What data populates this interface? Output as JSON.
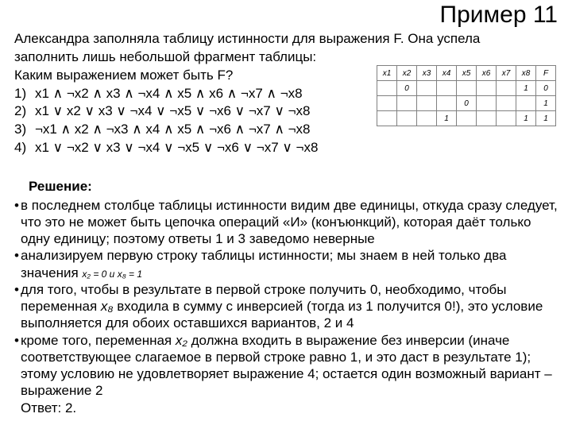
{
  "title": "Пример 11",
  "intro_line1": "Александра заполняла таблицу истинности для выражения F. Она успела",
  "intro_line2": "заполнить лишь небольшой фрагмент таблицы:",
  "question": "Каким выражением может быть F?",
  "options": [
    {
      "num": "1)",
      "expr": "x1 ∧ ¬x2 ∧ x3 ∧  ¬x4 ∧ x5 ∧ x6 ∧ ¬x7 ∧ ¬x8"
    },
    {
      "num": "2)",
      "expr": "x1 ∨ x2 ∨ x3 ∨  ¬x4 ∨ ¬x5 ∨ ¬x6 ∨ ¬x7 ∨ ¬x8"
    },
    {
      "num": "3)",
      "expr": "¬x1 ∧ x2 ∧ ¬x3 ∧  x4 ∧ x5 ∧ ¬x6 ∧ ¬x7 ∧ ¬x8"
    },
    {
      "num": "4)",
      "expr": "x1 ∨ ¬x2 ∨ x3 ∨  ¬x4 ∨ ¬x5 ∨ ¬x6 ∨ ¬x7 ∨ ¬x8"
    }
  ],
  "table": {
    "headers": [
      "x1",
      "x2",
      "x3",
      "x4",
      "x5",
      "x6",
      "x7",
      "x8",
      "F"
    ],
    "rows": [
      [
        "",
        "0",
        "",
        "",
        "",
        "",
        "",
        "1",
        "0"
      ],
      [
        "",
        "",
        "",
        "",
        "0",
        "",
        "",
        "",
        "1"
      ],
      [
        "",
        "",
        "",
        "1",
        "",
        "",
        "",
        "1",
        "1"
      ]
    ]
  },
  "solution_title": "Решение:",
  "bullets": [
    "в последнем столбце таблицы истинности видим две единицы, откуда сразу следует, что это не может быть цепочка операций «И» (конъюнкций), которая даёт только одну единицу; поэтому ответы 1 и 3 заведомо неверные",
    "анализируем первую строку таблицы истинности; мы знаем в ней только два значения",
    "для того, чтобы в результате в первой строке получить 0, необходимо, чтобы переменная x₈ входила в сумму с инверсией (тогда из 1 получится 0!), это условие выполняется для обоих оставшихся вариантов, 2 и 4",
    "кроме того, переменная x₂ должна входить в выражение без инверсии (иначе соответствующее слагаемое в первой строке равно 1, и это даст в результате 1); этому условию не удовлетворяет выражение 4; остается один возможный вариант – выражение 2"
  ],
  "math_inline": {
    "x2eq0": "x₂ = 0",
    "and": " и ",
    "x8eq1": "x₈ = 1"
  },
  "var_x8": "x₈",
  "var_x2": "x₂",
  "answer": "Ответ: 2.",
  "colors": {
    "border": "#808080",
    "text": "#000000",
    "bg": "#ffffff"
  }
}
